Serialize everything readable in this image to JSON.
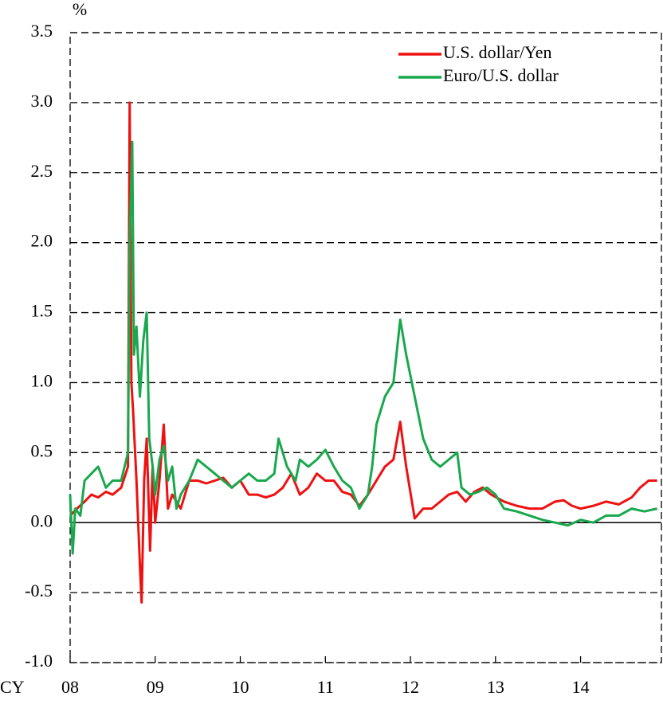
{
  "chart_data": {
    "type": "line",
    "y_label": "%",
    "x_label": "CY",
    "xlim": [
      2008,
      2014.95
    ],
    "xticks": [
      {
        "value": 2008,
        "label": "08"
      },
      {
        "value": 2009,
        "label": "09"
      },
      {
        "value": 2010,
        "label": "10"
      },
      {
        "value": 2011,
        "label": "11"
      },
      {
        "value": 2012,
        "label": "12"
      },
      {
        "value": 2013,
        "label": "13"
      },
      {
        "value": 2014,
        "label": "14"
      }
    ],
    "ylim": [
      -1.0,
      3.5
    ],
    "yticks": [
      {
        "value": -1,
        "label": "-1.0"
      },
      {
        "value": -0.5,
        "label": "-0.5"
      },
      {
        "value": 0,
        "label": "0.0"
      },
      0.5,
      {
        "value": 1,
        "label": "1.0"
      },
      1.5,
      {
        "value": 2,
        "label": "2.0"
      },
      2.5,
      {
        "value": 3,
        "label": "3.0"
      },
      3.5
    ],
    "grid": true,
    "legend": "top-right",
    "series": [
      {
        "name": "U.S. dollar/Yen",
        "color": "#ee1111",
        "x": [
          2008.0,
          2008.08,
          2008.17,
          2008.25,
          2008.33,
          2008.42,
          2008.5,
          2008.6,
          2008.68,
          2008.7,
          2008.72,
          2008.74,
          2008.78,
          2008.82,
          2008.84,
          2008.87,
          2008.9,
          2008.94,
          2008.97,
          2009.0,
          2009.05,
          2009.1,
          2009.15,
          2009.2,
          2009.3,
          2009.4,
          2009.5,
          2009.6,
          2009.7,
          2009.8,
          2009.9,
          2010.0,
          2010.1,
          2010.2,
          2010.3,
          2010.4,
          2010.5,
          2010.55,
          2010.6,
          2010.7,
          2010.8,
          2010.9,
          2011.0,
          2011.1,
          2011.2,
          2011.3,
          2011.4,
          2011.5,
          2011.6,
          2011.7,
          2011.8,
          2011.88,
          2011.95,
          2012.05,
          2012.15,
          2012.25,
          2012.35,
          2012.45,
          2012.55,
          2012.65,
          2012.75,
          2012.85,
          2012.95,
          2013.1,
          2013.25,
          2013.4,
          2013.55,
          2013.7,
          2013.8,
          2013.9,
          2014.0,
          2014.15,
          2014.3,
          2014.45,
          2014.6,
          2014.7,
          2014.8,
          2014.9
        ],
        "values": [
          0.05,
          0.1,
          0.15,
          0.2,
          0.18,
          0.22,
          0.2,
          0.25,
          0.4,
          3.0,
          1.0,
          0.8,
          0.3,
          -0.3,
          -0.57,
          0.3,
          0.6,
          -0.2,
          0.4,
          0.0,
          0.3,
          0.7,
          0.1,
          0.2,
          0.1,
          0.3,
          0.3,
          0.28,
          0.3,
          0.32,
          0.25,
          0.3,
          0.2,
          0.2,
          0.18,
          0.2,
          0.25,
          0.3,
          0.35,
          0.2,
          0.25,
          0.35,
          0.3,
          0.3,
          0.22,
          0.2,
          0.12,
          0.2,
          0.3,
          0.4,
          0.45,
          0.72,
          0.4,
          0.03,
          0.1,
          0.1,
          0.15,
          0.2,
          0.22,
          0.15,
          0.22,
          0.25,
          0.2,
          0.15,
          0.12,
          0.1,
          0.1,
          0.15,
          0.16,
          0.12,
          0.1,
          0.12,
          0.15,
          0.13,
          0.18,
          0.25,
          0.3,
          0.3
        ]
      },
      {
        "name": "Euro/U.S. dollar",
        "color": "#19a84d",
        "x": [
          2008.0,
          2008.03,
          2008.06,
          2008.12,
          2008.17,
          2008.25,
          2008.33,
          2008.42,
          2008.5,
          2008.6,
          2008.68,
          2008.7,
          2008.73,
          2008.75,
          2008.78,
          2008.82,
          2008.86,
          2008.9,
          2008.93,
          2008.97,
          2009.0,
          2009.05,
          2009.1,
          2009.15,
          2009.2,
          2009.25,
          2009.3,
          2009.4,
          2009.5,
          2009.6,
          2009.7,
          2009.8,
          2009.9,
          2010.0,
          2010.1,
          2010.2,
          2010.3,
          2010.4,
          2010.45,
          2010.55,
          2010.65,
          2010.7,
          2010.8,
          2010.9,
          2011.0,
          2011.1,
          2011.2,
          2011.3,
          2011.4,
          2011.5,
          2011.55,
          2011.6,
          2011.7,
          2011.8,
          2011.88,
          2011.95,
          2012.05,
          2012.15,
          2012.25,
          2012.35,
          2012.45,
          2012.55,
          2012.6,
          2012.7,
          2012.8,
          2012.9,
          2013.0,
          2013.1,
          2013.25,
          2013.4,
          2013.55,
          2013.7,
          2013.85,
          2014.0,
          2014.15,
          2014.3,
          2014.45,
          2014.6,
          2014.75,
          2014.9
        ],
        "values": [
          0.2,
          -0.22,
          0.1,
          0.05,
          0.3,
          0.35,
          0.4,
          0.25,
          0.3,
          0.3,
          0.5,
          2.0,
          2.72,
          1.2,
          1.4,
          0.9,
          1.3,
          1.5,
          0.6,
          0.4,
          0.2,
          0.45,
          0.55,
          0.3,
          0.4,
          0.1,
          0.2,
          0.3,
          0.45,
          0.4,
          0.35,
          0.3,
          0.25,
          0.3,
          0.35,
          0.3,
          0.3,
          0.35,
          0.6,
          0.4,
          0.3,
          0.45,
          0.4,
          0.45,
          0.52,
          0.4,
          0.3,
          0.25,
          0.1,
          0.2,
          0.4,
          0.7,
          0.9,
          1.0,
          1.45,
          1.2,
          0.9,
          0.6,
          0.45,
          0.4,
          0.45,
          0.5,
          0.25,
          0.2,
          0.22,
          0.25,
          0.2,
          0.1,
          0.08,
          0.05,
          0.02,
          0.0,
          -0.02,
          0.02,
          0.0,
          0.05,
          0.05,
          0.1,
          0.08,
          0.1
        ]
      }
    ]
  }
}
